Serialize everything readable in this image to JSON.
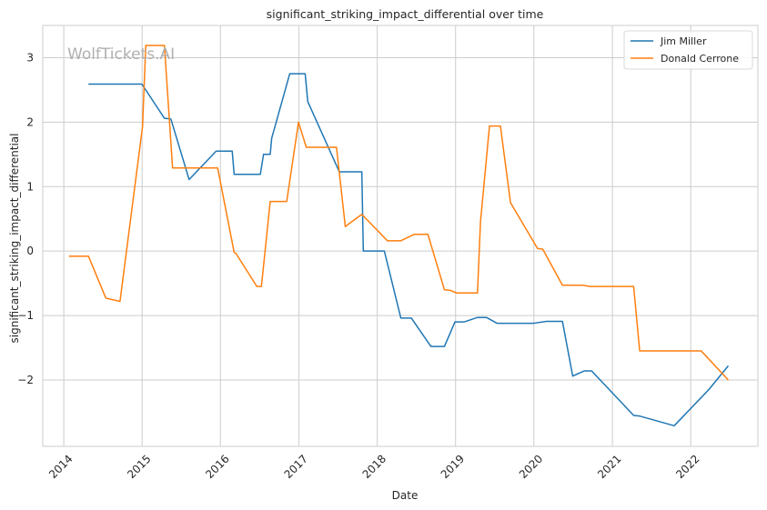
{
  "chart_data": {
    "type": "line",
    "title": "significant_striking_impact_differential over time",
    "xlabel": "Date",
    "ylabel": "significant_striking_impact_differential",
    "watermark": "WolfTickets.AI",
    "x_ticks": [
      "2014",
      "2015",
      "2016",
      "2017",
      "2018",
      "2019",
      "2020",
      "2021",
      "2022"
    ],
    "y_ticks": [
      {
        "value": 3,
        "label": "3"
      },
      {
        "value": 2,
        "label": "2"
      },
      {
        "value": 1,
        "label": "1"
      },
      {
        "value": 0,
        "label": "0"
      },
      {
        "value": -1,
        "label": "−1"
      },
      {
        "value": -2,
        "label": "−2"
      }
    ],
    "xlim": [
      "2013-09-25",
      "2022-11-10"
    ],
    "ylim": [
      -3.03,
      3.5
    ],
    "grid": true,
    "legend_position": "top-right",
    "series": [
      {
        "name": "Jim Miller",
        "color": "#1f77b4",
        "points": [
          [
            "2014-04-26",
            2.59
          ],
          [
            "2014-12-31",
            2.59
          ],
          [
            "2015-04-15",
            2.06
          ],
          [
            "2015-05-15",
            2.05
          ],
          [
            "2015-08-08",
            1.11
          ],
          [
            "2015-12-12",
            1.55
          ],
          [
            "2016-02-25",
            1.55
          ],
          [
            "2016-03-05",
            1.19
          ],
          [
            "2016-07-05",
            1.19
          ],
          [
            "2016-07-20",
            1.5
          ],
          [
            "2016-08-20",
            1.5
          ],
          [
            "2016-08-27",
            1.75
          ],
          [
            "2016-11-19",
            2.75
          ],
          [
            "2017-01-30",
            2.75
          ],
          [
            "2017-02-11",
            2.32
          ],
          [
            "2017-07-08",
            1.23
          ],
          [
            "2017-10-21",
            1.23
          ],
          [
            "2017-10-28",
            0.0
          ],
          [
            "2018-02-03",
            0.0
          ],
          [
            "2018-04-21",
            -1.04
          ],
          [
            "2018-06-09",
            -1.04
          ],
          [
            "2018-09-08",
            -1.48
          ],
          [
            "2018-11-10",
            -1.48
          ],
          [
            "2018-12-29",
            -1.1
          ],
          [
            "2019-02-09",
            -1.1
          ],
          [
            "2019-04-13",
            -1.03
          ],
          [
            "2019-05-25",
            -1.03
          ],
          [
            "2019-07-13",
            -1.12
          ],
          [
            "2019-12-31",
            -1.12
          ],
          [
            "2020-02-29",
            -1.09
          ],
          [
            "2020-05-13",
            -1.09
          ],
          [
            "2020-06-30",
            -1.94
          ],
          [
            "2020-08-22",
            -1.86
          ],
          [
            "2020-09-26",
            -1.86
          ],
          [
            "2021-04-10",
            -2.55
          ],
          [
            "2021-05-08",
            -2.56
          ],
          [
            "2021-10-16",
            -2.71
          ],
          [
            "2022-03-26",
            -2.15
          ],
          [
            "2022-06-25",
            -1.78
          ]
        ]
      },
      {
        "name": "Donald Cerrone",
        "color": "#ff7f0e",
        "points": [
          [
            "2014-01-25",
            -0.08
          ],
          [
            "2014-04-26",
            -0.08
          ],
          [
            "2014-07-16",
            -0.73
          ],
          [
            "2014-09-20",
            -0.78
          ],
          [
            "2015-01-03",
            1.93
          ],
          [
            "2015-01-18",
            3.19
          ],
          [
            "2015-04-15",
            3.19
          ],
          [
            "2015-05-23",
            1.29
          ],
          [
            "2015-12-19",
            1.29
          ],
          [
            "2016-03-05",
            -0.02
          ],
          [
            "2016-03-14",
            -0.04
          ],
          [
            "2016-06-19",
            -0.55
          ],
          [
            "2016-07-10",
            -0.55
          ],
          [
            "2016-08-20",
            0.77
          ],
          [
            "2016-11-05",
            0.77
          ],
          [
            "2016-12-30",
            2.0
          ],
          [
            "2017-02-04",
            1.61
          ],
          [
            "2017-06-25",
            1.61
          ],
          [
            "2017-08-05",
            0.38
          ],
          [
            "2017-10-21",
            0.57
          ],
          [
            "2018-02-17",
            0.16
          ],
          [
            "2018-04-21",
            0.16
          ],
          [
            "2018-06-23",
            0.26
          ],
          [
            "2018-08-25",
            0.26
          ],
          [
            "2018-11-10",
            -0.6
          ],
          [
            "2018-12-08",
            -0.61
          ],
          [
            "2019-01-05",
            -0.65
          ],
          [
            "2019-04-13",
            -0.65
          ],
          [
            "2019-04-27",
            0.45
          ],
          [
            "2019-06-08",
            1.94
          ],
          [
            "2019-07-29",
            1.94
          ],
          [
            "2019-09-14",
            0.75
          ],
          [
            "2020-01-18",
            0.04
          ],
          [
            "2020-02-11",
            0.03
          ],
          [
            "2020-05-13",
            -0.53
          ],
          [
            "2020-08-15",
            -0.53
          ],
          [
            "2020-09-19",
            -0.55
          ],
          [
            "2021-04-10",
            -0.55
          ],
          [
            "2021-05-08",
            -1.55
          ],
          [
            "2022-02-19",
            -1.55
          ],
          [
            "2022-06-25",
            -2.0
          ]
        ]
      }
    ]
  }
}
